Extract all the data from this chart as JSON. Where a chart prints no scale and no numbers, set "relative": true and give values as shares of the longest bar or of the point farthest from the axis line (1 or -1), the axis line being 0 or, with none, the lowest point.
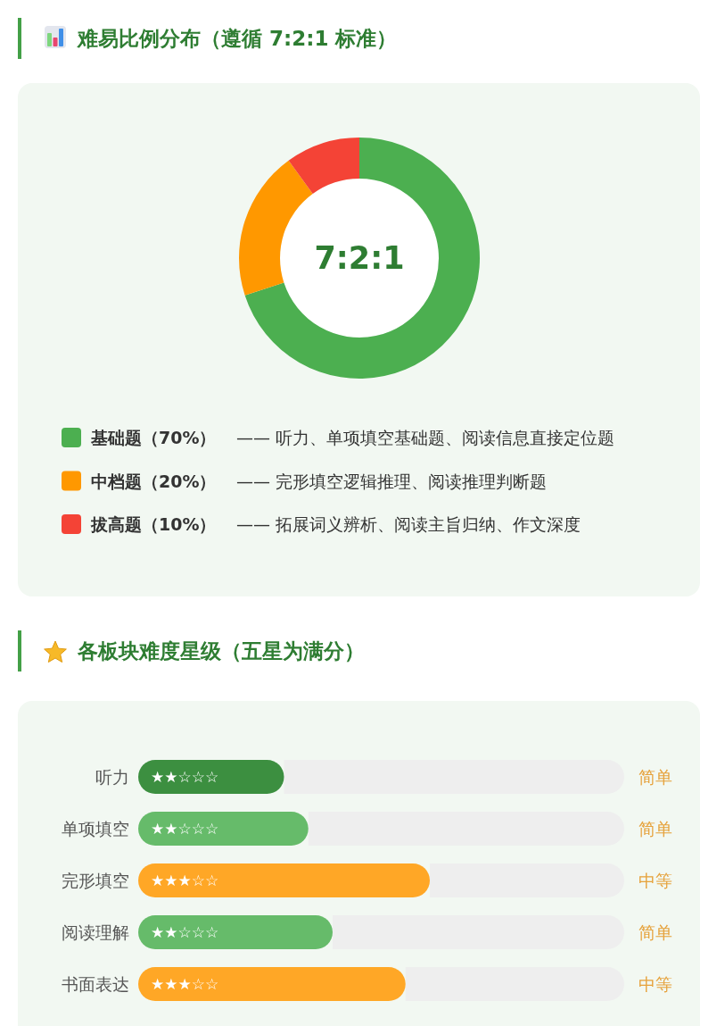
{
  "chart_data": [
    {
      "type": "donut",
      "title": "难易比例分布（遵循 7:2:1 标准）",
      "categories": [
        "基础题（70%）",
        "中档题（20%）",
        "拔高题（10%）"
      ],
      "values": [
        70,
        20,
        10
      ],
      "colors": [
        "#4caf50",
        "#ff9800",
        "#f44336"
      ],
      "legend": "bottom",
      "annotations": [
        "7:2:1",
        "—— 听力、单项填空基础题、阅读信息直接定位题",
        "—— 完形填空逻辑推理、阅读推理判断题",
        "—— 拓展词义辨析、阅读主旨归纳、作文深度"
      ]
    },
    {
      "type": "bar",
      "orientation": "horizontal",
      "relative": true,
      "stacked": true,
      "title": "各板块难度星级（五星为满分）",
      "categories": [
        "听力",
        "单项填空",
        "完形填空",
        "阅读理解",
        "书面表达"
      ],
      "series": [
        {
          "colors": [
            "#3c8f40",
            "#66bb6a",
            "#ffa726",
            "#66bb6a",
            "#ffa726"
          ],
          "values": [
            0.3,
            0.35,
            0.6,
            0.4,
            0.55
          ]
        },
        {
          "color": "#eeeeee",
          "values": [
            0.7,
            0.65,
            0.4,
            0.6,
            0.45
          ]
        }
      ],
      "annotations": [
        "★★☆☆☆",
        "简单",
        "★★☆☆☆",
        "简单",
        "★★★☆☆",
        "中等",
        "★★☆☆☆",
        "简单",
        "★★★☆☆",
        "中等"
      ]
    }
  ]
}
